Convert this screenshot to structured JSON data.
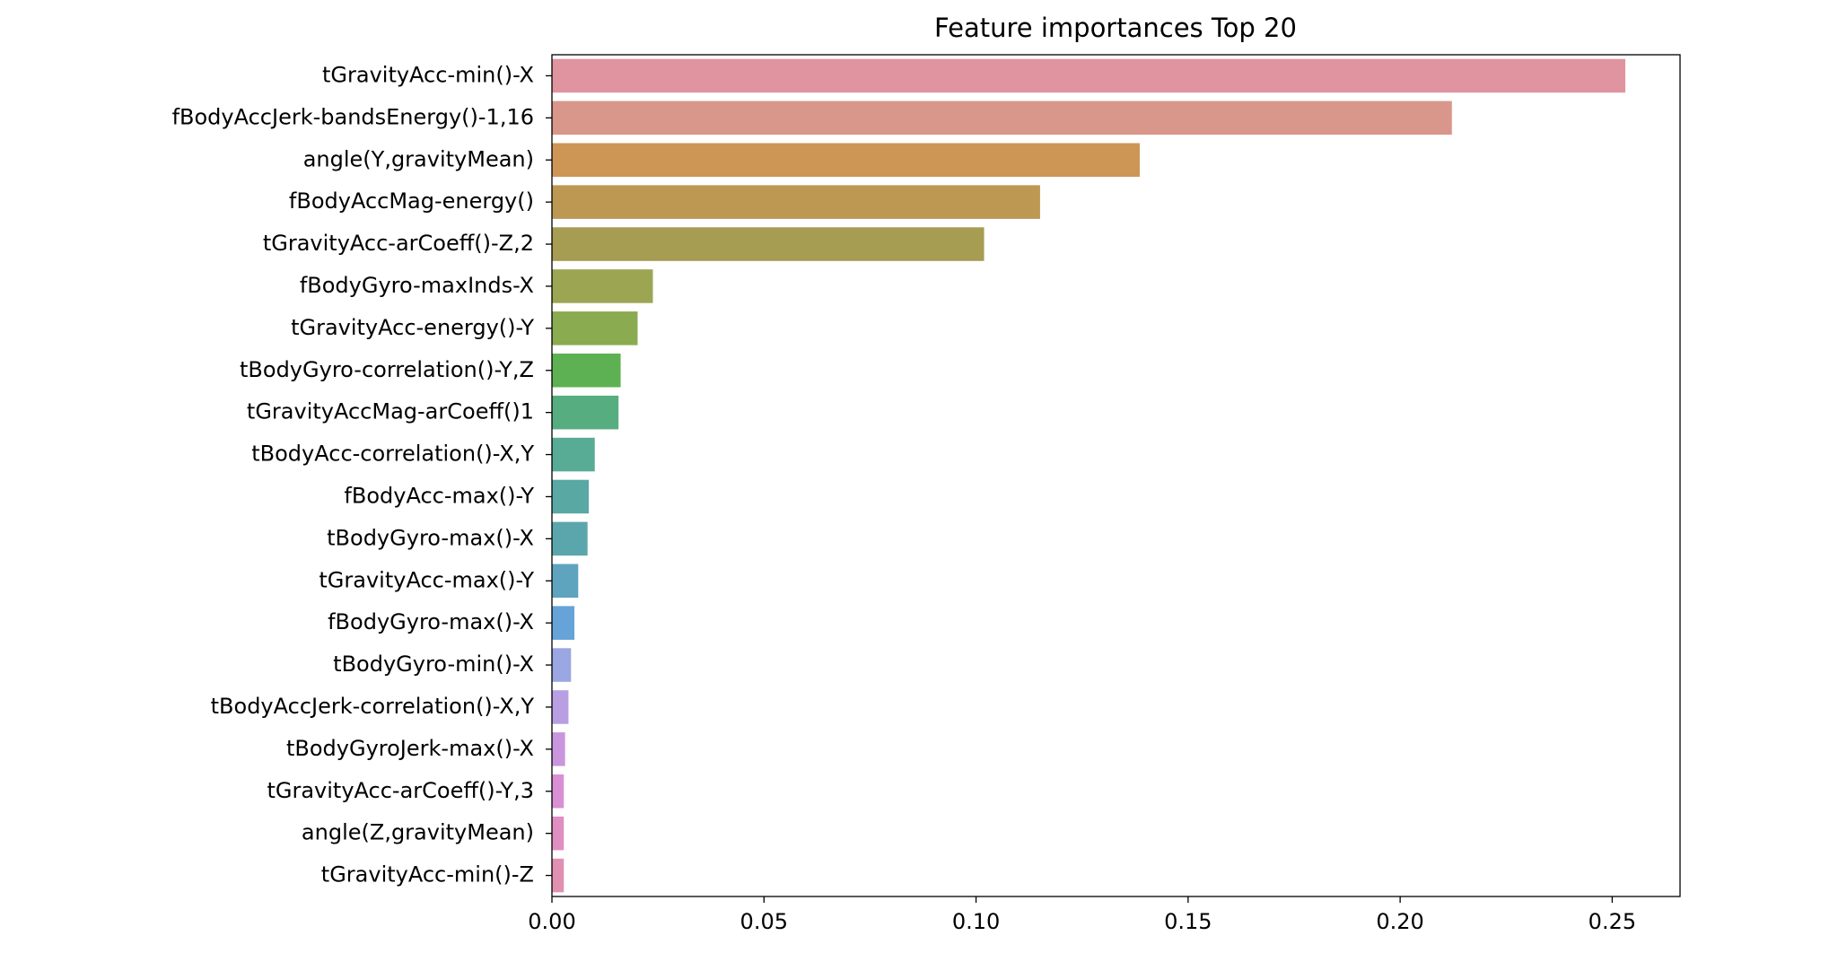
{
  "chart_data": {
    "type": "barh",
    "title": "Feature importances Top 20",
    "categories": [
      "tGravityAcc-min()-X",
      "fBodyAccJerk-bandsEnergy()-1,16",
      "angle(Y,gravityMean)",
      "fBodyAccMag-energy()",
      "tGravityAcc-arCoeff()-Z,2",
      "fBodyGyro-maxInds-X",
      "tGravityAcc-energy()-Y",
      "tBodyGyro-correlation()-Y,Z",
      "tGravityAccMag-arCoeff()1",
      "tBodyAcc-correlation()-X,Y",
      "fBodyAcc-max()-Y",
      "tBodyGyro-max()-X",
      "tGravityAcc-max()-Y",
      "fBodyGyro-max()-X",
      "tBodyGyro-min()-X",
      "tBodyAccJerk-correlation()-X,Y",
      "tBodyGyroJerk-max()-X",
      "tGravityAcc-arCoeff()-Y,3",
      "angle(Z,gravityMean)",
      "tGravityAcc-min()-Z"
    ],
    "values": [
      0.2531,
      0.2122,
      0.1386,
      0.1151,
      0.1019,
      0.0238,
      0.0202,
      0.0162,
      0.0157,
      0.0101,
      0.0087,
      0.0084,
      0.0062,
      0.0053,
      0.0045,
      0.0039,
      0.0031,
      0.0028,
      0.0028,
      0.0028
    ],
    "colors": [
      "#e0949f",
      "#d9968a",
      "#cd9655",
      "#bd9852",
      "#a69c52",
      "#9ca552",
      "#8aab4f",
      "#5eb153",
      "#56ad80",
      "#58ab94",
      "#5aa8a3",
      "#5ba6ac",
      "#5ea4bf",
      "#65a3d9",
      "#9ba7e2",
      "#b79fe2",
      "#c996de",
      "#d98fd4",
      "#df8fc1",
      "#e190b1"
    ],
    "xlim": [
      0,
      0.266
    ],
    "xticks": [
      {
        "value": 0,
        "label": "0.00"
      },
      {
        "value": 0.05,
        "label": "0.05"
      },
      {
        "value": 0.1,
        "label": "0.10"
      },
      {
        "value": 0.15,
        "label": "0.15"
      },
      {
        "value": 0.2,
        "label": "0.20"
      },
      {
        "value": 0.25,
        "label": "0.25"
      }
    ]
  }
}
